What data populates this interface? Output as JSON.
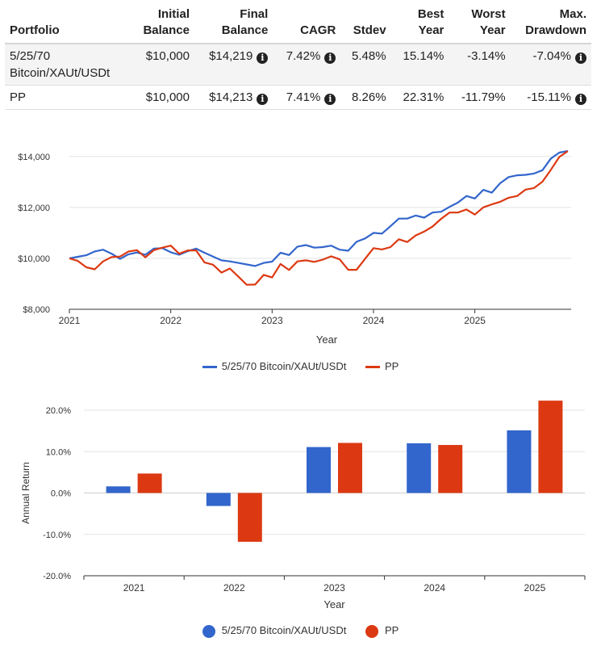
{
  "colors": {
    "series1": "#3366cc",
    "series2": "#dc3912"
  },
  "table": {
    "headers": [
      {
        "line1": "",
        "line2": "Portfolio"
      },
      {
        "line1": "Initial",
        "line2": "Balance"
      },
      {
        "line1": "Final",
        "line2": "Balance"
      },
      {
        "line1": "",
        "line2": "CAGR"
      },
      {
        "line1": "",
        "line2": "Stdev"
      },
      {
        "line1": "Best",
        "line2": "Year"
      },
      {
        "line1": "Worst",
        "line2": "Year"
      },
      {
        "line1": "Max.",
        "line2": "Drawdown"
      }
    ],
    "rows": [
      {
        "portfolio_line1": "5/25/70",
        "portfolio_line2": "Bitcoin/XAUt/USDt",
        "initial": "$10,000",
        "final": "$14,219",
        "cagr": "7.42%",
        "stdev": "5.48%",
        "best": "15.14%",
        "worst": "-3.14%",
        "drawdown": "-7.04%"
      },
      {
        "portfolio_line1": "PP",
        "portfolio_line2": "",
        "initial": "$10,000",
        "final": "$14,213",
        "cagr": "7.41%",
        "stdev": "8.26%",
        "best": "22.31%",
        "worst": "-11.79%",
        "drawdown": "-15.11%"
      }
    ],
    "info_icon": "info-icon"
  },
  "chart_data": [
    {
      "type": "line",
      "title": "",
      "xlabel": "Year",
      "ylabel": "",
      "ylim": [
        8000,
        14500
      ],
      "yticks": [
        8000,
        10000,
        12000,
        14000
      ],
      "ytick_labels": [
        "$8,000",
        "$10,000",
        "$12,000",
        "$14,000"
      ],
      "xticks": [
        2021,
        2022,
        2023,
        2024,
        2025
      ],
      "xtick_labels": [
        "2021",
        "2022",
        "2023",
        "2024",
        "2025"
      ],
      "xlim": [
        2021.0,
        2025.95
      ],
      "legend": "bottom",
      "series": [
        {
          "name": "5/25/70 Bitcoin/XAUt/USDt",
          "x": [
            2021.0,
            2021.083,
            2021.167,
            2021.25,
            2021.333,
            2021.417,
            2021.5,
            2021.583,
            2021.667,
            2021.75,
            2021.833,
            2021.917,
            2022.0,
            2022.083,
            2022.167,
            2022.25,
            2022.333,
            2022.417,
            2022.5,
            2022.583,
            2022.667,
            2022.75,
            2022.833,
            2022.917,
            2023.0,
            2023.083,
            2023.167,
            2023.25,
            2023.333,
            2023.417,
            2023.5,
            2023.583,
            2023.667,
            2023.75,
            2023.833,
            2023.917,
            2024.0,
            2024.083,
            2024.167,
            2024.25,
            2024.333,
            2024.417,
            2024.5,
            2024.583,
            2024.667,
            2024.75,
            2024.833,
            2024.917,
            2025.0,
            2025.083,
            2025.167,
            2025.25,
            2025.333,
            2025.417,
            2025.5,
            2025.583,
            2025.667,
            2025.75,
            2025.833,
            2025.917
          ],
          "y": [
            10000,
            10060,
            10120,
            10270,
            10340,
            10180,
            9980,
            10160,
            10230,
            10140,
            10380,
            10400,
            10240,
            10140,
            10280,
            10380,
            10220,
            10070,
            9920,
            9880,
            9820,
            9760,
            9700,
            9820,
            9870,
            10220,
            10130,
            10460,
            10520,
            10420,
            10440,
            10500,
            10340,
            10300,
            10650,
            10780,
            11000,
            10970,
            11260,
            11560,
            11560,
            11680,
            11600,
            11800,
            11830,
            12020,
            12190,
            12450,
            12350,
            12690,
            12580,
            12950,
            13190,
            13260,
            13280,
            13330,
            13460,
            13920,
            14150,
            14219
          ]
        },
        {
          "name": "PP",
          "x": [
            2021.0,
            2021.083,
            2021.167,
            2021.25,
            2021.333,
            2021.417,
            2021.5,
            2021.583,
            2021.667,
            2021.75,
            2021.833,
            2021.917,
            2022.0,
            2022.083,
            2022.167,
            2022.25,
            2022.333,
            2022.417,
            2022.5,
            2022.583,
            2022.667,
            2022.75,
            2022.833,
            2022.917,
            2023.0,
            2023.083,
            2023.167,
            2023.25,
            2023.333,
            2023.417,
            2023.5,
            2023.583,
            2023.667,
            2023.75,
            2023.833,
            2023.917,
            2024.0,
            2024.083,
            2024.167,
            2024.25,
            2024.333,
            2024.417,
            2024.5,
            2024.583,
            2024.667,
            2024.75,
            2024.833,
            2024.917,
            2025.0,
            2025.083,
            2025.167,
            2025.25,
            2025.333,
            2025.417,
            2025.5,
            2025.583,
            2025.667,
            2025.75,
            2025.833,
            2025.917
          ],
          "y": [
            10000,
            9900,
            9650,
            9570,
            9880,
            10050,
            10070,
            10270,
            10320,
            10040,
            10320,
            10420,
            10500,
            10180,
            10310,
            10310,
            9840,
            9750,
            9440,
            9600,
            9280,
            8960,
            8970,
            9350,
            9250,
            9780,
            9540,
            9880,
            9920,
            9860,
            9950,
            10080,
            9960,
            9550,
            9550,
            9980,
            10400,
            10350,
            10440,
            10750,
            10640,
            10900,
            11050,
            11250,
            11550,
            11800,
            11800,
            11920,
            11720,
            12000,
            12120,
            12220,
            12380,
            12450,
            12700,
            12760,
            13010,
            13480,
            13980,
            14213
          ]
        }
      ]
    },
    {
      "type": "bar",
      "title": "",
      "xlabel": "Year",
      "ylabel": "Annual Return",
      "ylim": [
        -20,
        20
      ],
      "yticks": [
        -20,
        -10,
        0,
        10,
        20
      ],
      "ytick_labels": [
        "-20.0%",
        "-10.0%",
        "0.0%",
        "10.0%",
        "20.0%"
      ],
      "categories": [
        "2021",
        "2022",
        "2023",
        "2024",
        "2025"
      ],
      "legend": "bottom",
      "series": [
        {
          "name": "5/25/70 Bitcoin/XAUt/USDt",
          "values": [
            1.6,
            -3.14,
            11.1,
            12.0,
            15.14
          ]
        },
        {
          "name": "PP",
          "values": [
            4.7,
            -11.79,
            12.1,
            11.6,
            22.31
          ]
        }
      ]
    }
  ]
}
